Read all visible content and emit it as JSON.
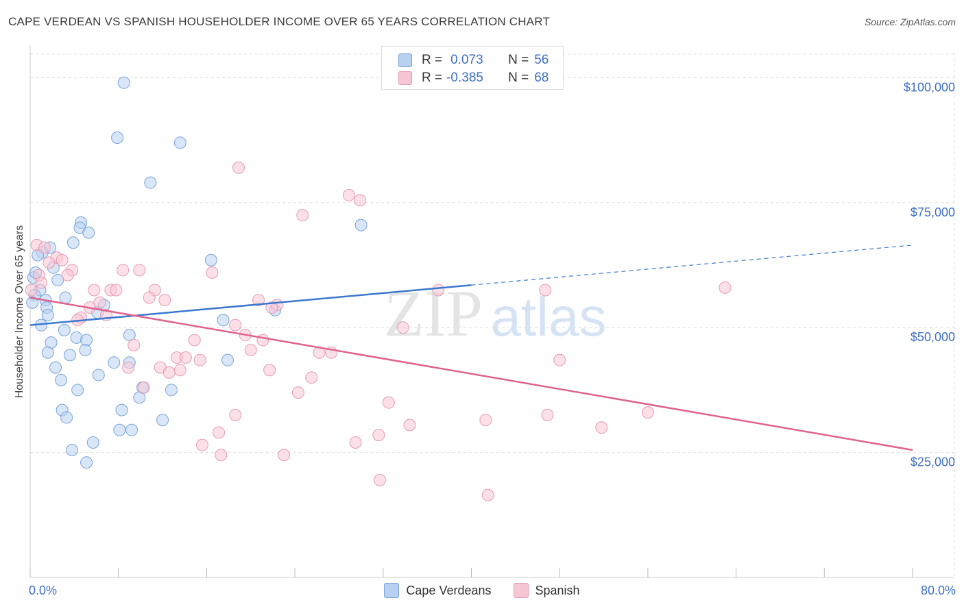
{
  "header": {
    "title": "CAPE VERDEAN VS SPANISH HOUSEHOLDER INCOME OVER 65 YEARS CORRELATION CHART",
    "source": "Source: ZipAtlas.com"
  },
  "watermark": {
    "zip": "ZIP",
    "atlas": "atlas"
  },
  "legend_top": [
    {
      "r_label": "R =",
      "r_value": "0.073",
      "n_label": "N =",
      "n_value": "56"
    },
    {
      "r_label": "R =",
      "r_value": "-0.385",
      "n_label": "N =",
      "n_value": "68"
    }
  ],
  "colors": {
    "blue_fill": "#b8d1f1",
    "blue_stroke": "#7aa3da",
    "blue_line": "#3a78d0",
    "pink_fill": "#f7c6d5",
    "pink_stroke": "#e79bb4",
    "pink_line": "#e0628e",
    "tick_text": "#3f6fc4",
    "grid": "#dddddd"
  },
  "chart_data": {
    "type": "scatter",
    "title": "CAPE VERDEAN VS SPANISH HOUSEHOLDER INCOME OVER 65 YEARS CORRELATION CHART",
    "xlabel": "",
    "ylabel": "Householder Income Over 65 years",
    "xlim": [
      0,
      80
    ],
    "ylim": [
      0,
      105000
    ],
    "x_tick_labels": [
      "0.0%",
      "80.0%"
    ],
    "y_ticks": [
      25000,
      50000,
      75000,
      100000
    ],
    "y_tick_labels": [
      "$25,000",
      "$50,000",
      "$75,000",
      "$100,000"
    ],
    "grid": true,
    "legend_position": "bottom",
    "series": [
      {
        "name": "Cape Verdeans",
        "r": 0.073,
        "n": 56,
        "points": [
          [
            8.5,
            99000
          ],
          [
            7.9,
            88000
          ],
          [
            13.6,
            87000
          ],
          [
            10.9,
            79000
          ],
          [
            30.0,
            70500
          ],
          [
            4.6,
            71000
          ],
          [
            4.5,
            70000
          ],
          [
            5.3,
            69000
          ],
          [
            3.9,
            67000
          ],
          [
            1.8,
            66000
          ],
          [
            1.1,
            65000
          ],
          [
            0.7,
            64500
          ],
          [
            16.4,
            63500
          ],
          [
            2.1,
            62000
          ],
          [
            0.3,
            60000
          ],
          [
            2.5,
            59500
          ],
          [
            0.9,
            57500
          ],
          [
            0.4,
            56500
          ],
          [
            3.2,
            56000
          ],
          [
            1.4,
            55500
          ],
          [
            0.2,
            55000
          ],
          [
            6.7,
            54500
          ],
          [
            1.5,
            54000
          ],
          [
            22.2,
            53500
          ],
          [
            6.1,
            53000
          ],
          [
            1.6,
            52500
          ],
          [
            17.5,
            51500
          ],
          [
            1.0,
            50500
          ],
          [
            3.1,
            49500
          ],
          [
            9.0,
            48500
          ],
          [
            4.2,
            48000
          ],
          [
            5.1,
            47500
          ],
          [
            1.9,
            47000
          ],
          [
            5.0,
            45500
          ],
          [
            1.6,
            45000
          ],
          [
            3.6,
            44500
          ],
          [
            17.9,
            43500
          ],
          [
            7.6,
            43000
          ],
          [
            9.0,
            43000
          ],
          [
            2.3,
            42000
          ],
          [
            6.2,
            40500
          ],
          [
            2.8,
            39500
          ],
          [
            10.2,
            38000
          ],
          [
            4.3,
            37500
          ],
          [
            12.8,
            37500
          ],
          [
            9.9,
            36000
          ],
          [
            2.9,
            33500
          ],
          [
            8.3,
            33500
          ],
          [
            3.3,
            32000
          ],
          [
            12.0,
            31500
          ],
          [
            8.1,
            29500
          ],
          [
            9.2,
            29500
          ],
          [
            5.7,
            27000
          ],
          [
            3.8,
            25500
          ],
          [
            5.1,
            23000
          ],
          [
            0.5,
            61000
          ]
        ],
        "trend": {
          "x": [
            0,
            40
          ],
          "y": [
            50500,
            58500
          ]
        },
        "trend_extension": {
          "x": [
            40,
            80
          ],
          "y": [
            58500,
            66500
          ]
        }
      },
      {
        "name": "Spanish",
        "r": -0.385,
        "n": 68,
        "points": [
          [
            0.1,
            57500
          ],
          [
            0.6,
            66500
          ],
          [
            1.3,
            66000
          ],
          [
            2.4,
            64000
          ],
          [
            2.9,
            63500
          ],
          [
            1.7,
            63000
          ],
          [
            3.8,
            61500
          ],
          [
            8.4,
            61500
          ],
          [
            9.9,
            61500
          ],
          [
            16.5,
            61000
          ],
          [
            3.4,
            60500
          ],
          [
            0.8,
            60500
          ],
          [
            1.0,
            59000
          ],
          [
            5.8,
            57500
          ],
          [
            7.3,
            57500
          ],
          [
            7.8,
            57500
          ],
          [
            11.3,
            57500
          ],
          [
            37.0,
            57500
          ],
          [
            46.7,
            57500
          ],
          [
            63.0,
            58000
          ],
          [
            10.8,
            56000
          ],
          [
            12.2,
            55500
          ],
          [
            6.3,
            55000
          ],
          [
            20.7,
            55500
          ],
          [
            22.4,
            54500
          ],
          [
            5.4,
            54000
          ],
          [
            21.9,
            54000
          ],
          [
            4.6,
            52000
          ],
          [
            6.9,
            52500
          ],
          [
            4.3,
            51500
          ],
          [
            18.6,
            50500
          ],
          [
            33.8,
            50000
          ],
          [
            19.5,
            48500
          ],
          [
            14.9,
            47500
          ],
          [
            21.1,
            47500
          ],
          [
            9.4,
            46500
          ],
          [
            20.0,
            45500
          ],
          [
            26.2,
            45000
          ],
          [
            27.3,
            45000
          ],
          [
            13.3,
            44000
          ],
          [
            14.1,
            44000
          ],
          [
            15.4,
            43500
          ],
          [
            48.0,
            43500
          ],
          [
            8.9,
            42000
          ],
          [
            11.8,
            42000
          ],
          [
            13.6,
            41500
          ],
          [
            21.7,
            41500
          ],
          [
            12.6,
            41000
          ],
          [
            25.5,
            40000
          ],
          [
            10.3,
            38000
          ],
          [
            24.3,
            37000
          ],
          [
            32.5,
            35000
          ],
          [
            18.6,
            32500
          ],
          [
            46.9,
            32500
          ],
          [
            56.0,
            33000
          ],
          [
            41.3,
            31500
          ],
          [
            34.4,
            30500
          ],
          [
            51.8,
            30000
          ],
          [
            17.1,
            29000
          ],
          [
            31.6,
            28500
          ],
          [
            29.5,
            27000
          ],
          [
            15.6,
            26500
          ],
          [
            17.3,
            24500
          ],
          [
            23.0,
            24500
          ],
          [
            31.7,
            19500
          ],
          [
            41.5,
            16500
          ],
          [
            18.9,
            82000
          ],
          [
            28.9,
            76500
          ],
          [
            29.9,
            75500
          ],
          [
            24.7,
            72500
          ]
        ],
        "trend": {
          "x": [
            0,
            80
          ],
          "y": [
            56000,
            25500
          ]
        }
      }
    ]
  }
}
